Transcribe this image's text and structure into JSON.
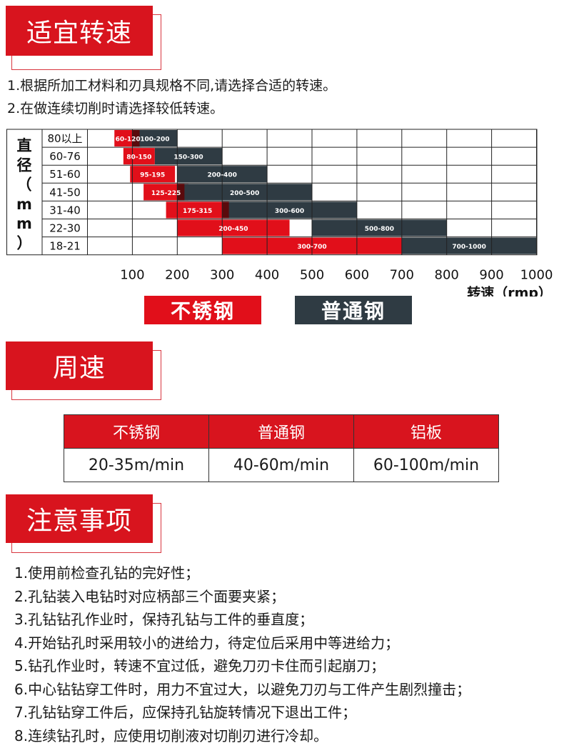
{
  "section1": {
    "title": "适宜转速"
  },
  "intro_lines": [
    "1.根据所加工材料和刃具规格不同,请选择合适的转速。",
    "2.在做连续切削时请选择较低转速。"
  ],
  "chart_data": {
    "type": "bar",
    "orientation": "horizontal-range",
    "ylabel": "直径（mm）",
    "xlabel": "转速（rmp）",
    "xlim": [
      0,
      1000
    ],
    "xticks": [
      "100",
      "200",
      "300",
      "400",
      "500",
      "600",
      "700",
      "800",
      "900",
      "1000"
    ],
    "categories": [
      "80以上",
      "60-76",
      "51-60",
      "41-50",
      "31-40",
      "22-30",
      "18-21"
    ],
    "series": [
      {
        "name": "不锈钢",
        "color": "#e10f1a",
        "ranges": [
          [
            60,
            120
          ],
          [
            80,
            150
          ],
          [
            95,
            195
          ],
          [
            125,
            225
          ],
          [
            175,
            315
          ],
          [
            200,
            450
          ],
          [
            300,
            700
          ]
        ],
        "labels": [
          "60-120",
          "80-150",
          "95-195",
          "125-225",
          "175-315",
          "200-450",
          "300-700"
        ]
      },
      {
        "name": "普通钢",
        "color": "#2f3b43",
        "ranges": [
          [
            100,
            200
          ],
          [
            150,
            300
          ],
          [
            200,
            400
          ],
          [
            200,
            500
          ],
          [
            300,
            600
          ],
          [
            500,
            800
          ],
          [
            700,
            1000
          ]
        ],
        "labels": [
          "100-200",
          "150-300",
          "200-400",
          "200-500",
          "300-600",
          "500-800",
          "700-1000"
        ]
      }
    ],
    "grid": true
  },
  "legend": {
    "stainless": "不锈钢",
    "regular": "普通钢"
  },
  "section2": {
    "title": "周速"
  },
  "speed_table": {
    "headers": [
      "不锈钢",
      "普通钢",
      "铝板"
    ],
    "values": [
      "20-35m/min",
      "40-60m/min",
      "60-100m/min"
    ]
  },
  "section3": {
    "title": "注意事项"
  },
  "notes": [
    "1.使用前检查孔钻的完好性；",
    "2.孔钻装入电钻时对应柄部三个面要夹紧；",
    "3.孔钻钻孔作业时，保持孔钻与工件的垂直度；",
    "4.开始钻孔时采用较小的进给力，待定位后采用中等进给力；",
    "5.钻孔作业时，转速不宜过低，避免刀刃卡住而引起崩刀；",
    "6.中心钻钻穿工件时，用力不宜过大，以避免刀刃与工件产生剧烈撞击；",
    "7.孔钻钻穿工件后，应保持孔钻旋转情况下退出工件；",
    "8.连续钻孔时，应使用切削液对切削刃进行冷却。"
  ],
  "colors": {
    "brand_red": "#d8141e",
    "dark_gray": "#2f3b43"
  }
}
